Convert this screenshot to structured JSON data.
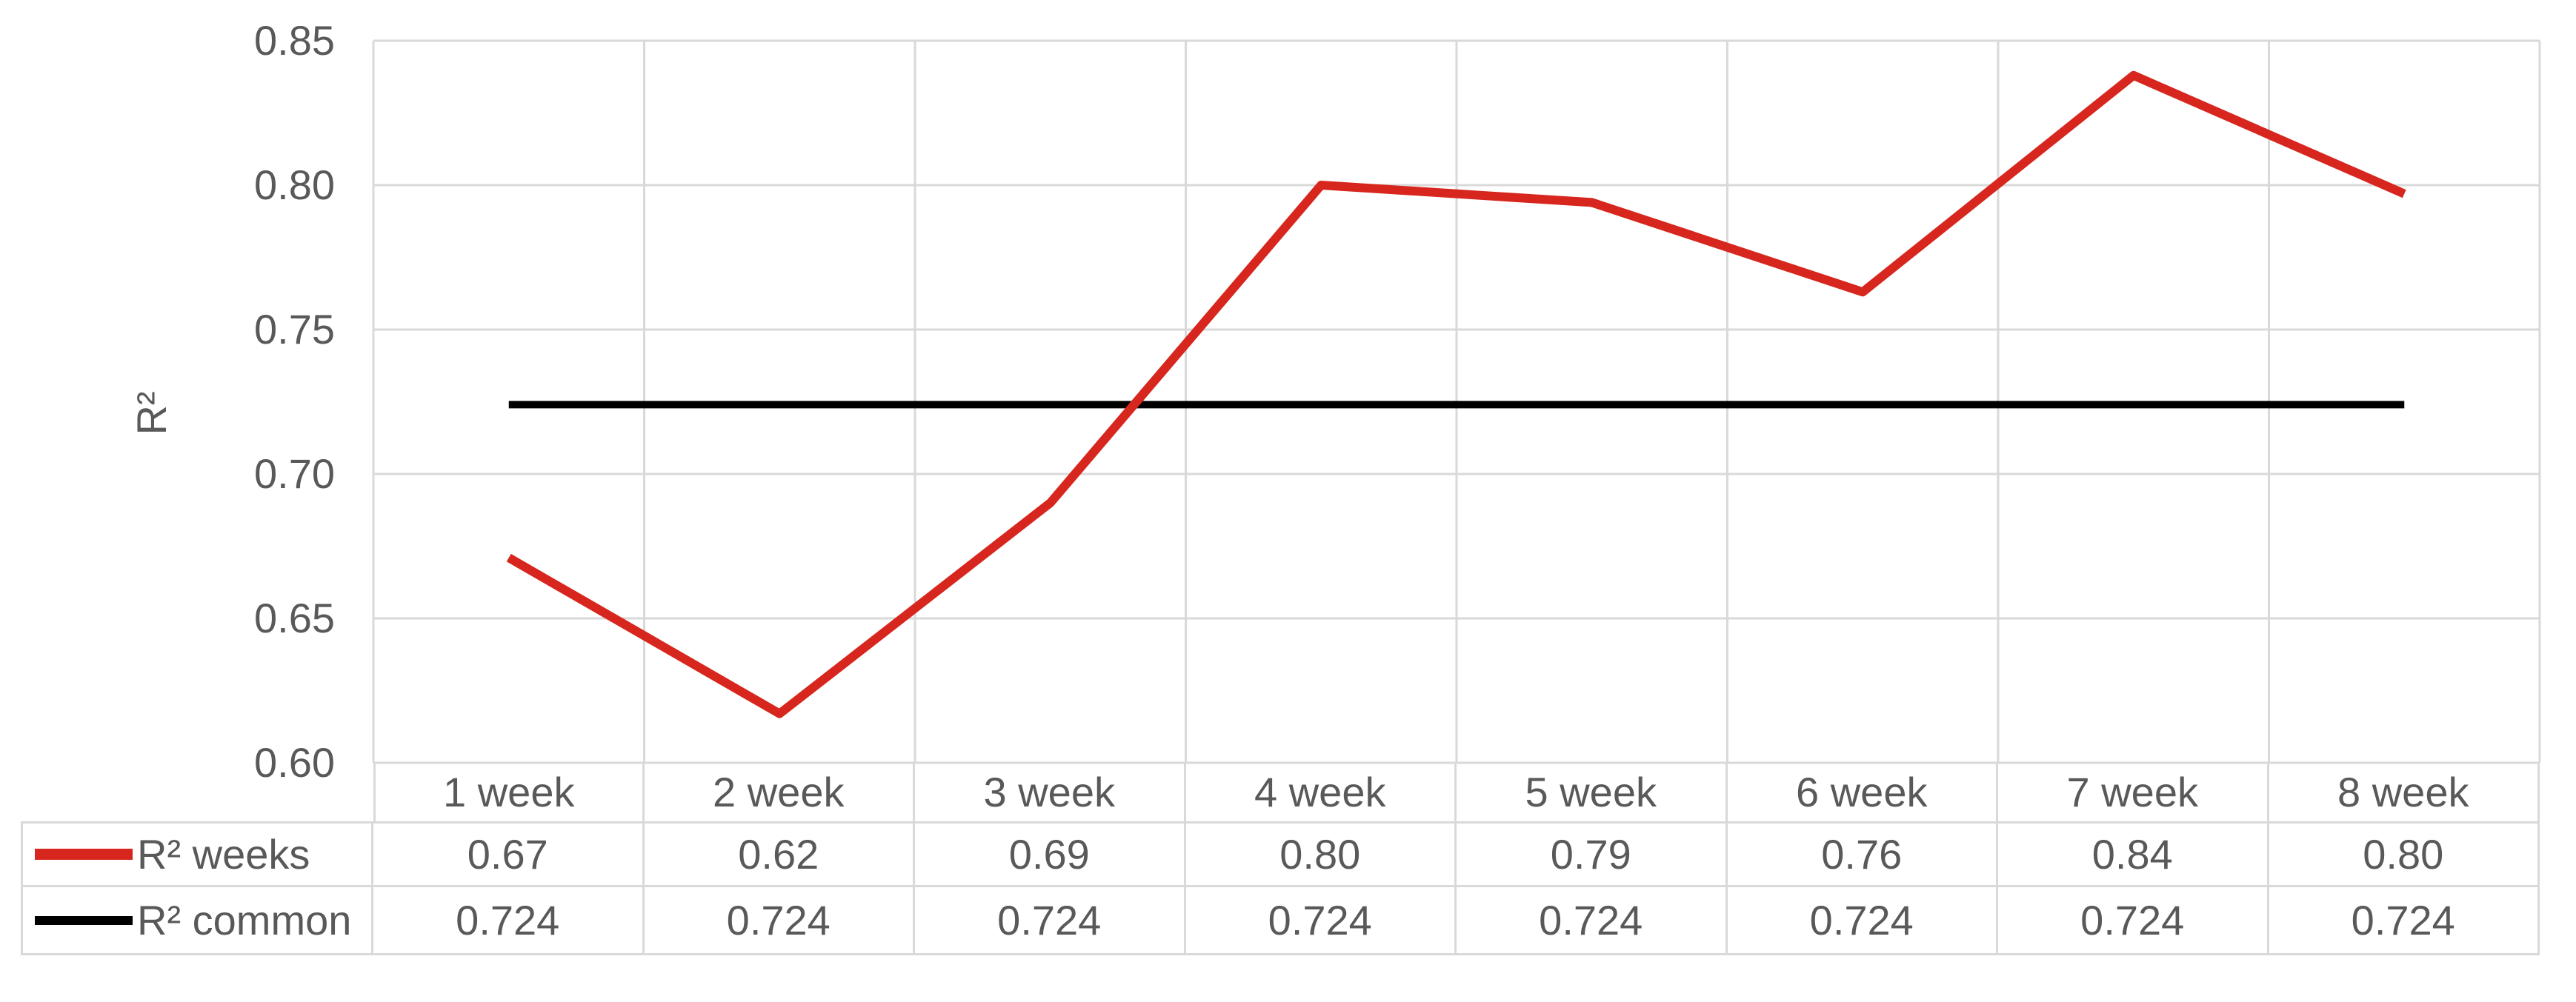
{
  "chart_data": {
    "type": "line",
    "title": "",
    "xlabel": "",
    "ylabel": "R²",
    "ylim": [
      0.6,
      0.85
    ],
    "y_tick_step": 0.05,
    "y_ticks": [
      "0.85",
      "0.80",
      "0.75",
      "0.70",
      "0.65",
      "0.60"
    ],
    "categories": [
      "1 week",
      "2 week",
      "3 week",
      "4 week",
      "5 week",
      "6 week",
      "7 week",
      "8 week"
    ],
    "grid": true,
    "legend_position": "table-left",
    "series": [
      {
        "name": "R² weeks",
        "color": "#d7261d",
        "values": [
          0.67,
          0.62,
          0.69,
          0.8,
          0.79,
          0.76,
          0.84,
          0.8
        ],
        "values_precise": [
          0.671,
          0.617,
          0.69,
          0.8,
          0.794,
          0.763,
          0.838,
          0.797
        ],
        "table_labels": [
          "0.67",
          "0.62",
          "0.69",
          "0.80",
          "0.79",
          "0.76",
          "0.84",
          "0.80"
        ]
      },
      {
        "name": "R² common",
        "color": "#000000",
        "values": [
          0.724,
          0.724,
          0.724,
          0.724,
          0.724,
          0.724,
          0.724,
          0.724
        ],
        "values_precise": [
          0.724,
          0.724,
          0.724,
          0.724,
          0.724,
          0.724,
          0.724,
          0.724
        ],
        "table_labels": [
          "0.724",
          "0.724",
          "0.724",
          "0.724",
          "0.724",
          "0.724",
          "0.724",
          "0.724"
        ]
      }
    ],
    "colors": {
      "grid": "#d9d9d9",
      "text": "#595959",
      "background": "#ffffff"
    }
  }
}
